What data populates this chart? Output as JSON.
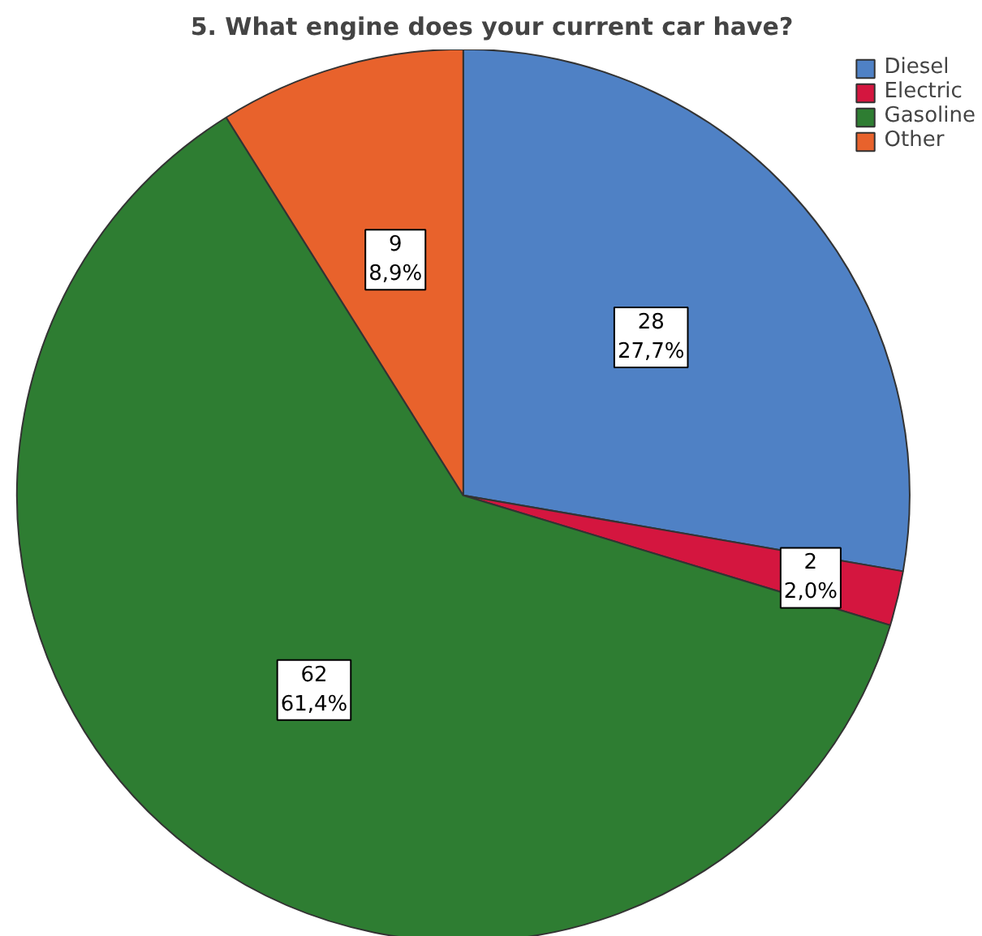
{
  "chart_data": {
    "type": "pie",
    "title": "5. What engine does your current car have?",
    "categories": [
      "Diesel",
      "Electric",
      "Gasoline",
      "Other"
    ],
    "values": [
      28,
      2,
      62,
      9
    ],
    "colors": [
      "#4f81c5",
      "#d4163f",
      "#2e7d32",
      "#e8622c"
    ],
    "value_labels": [
      "28\n27,7%",
      "2\n2,0%",
      "62\n61,4%",
      "9\n8,9%"
    ],
    "legend": "top right"
  }
}
